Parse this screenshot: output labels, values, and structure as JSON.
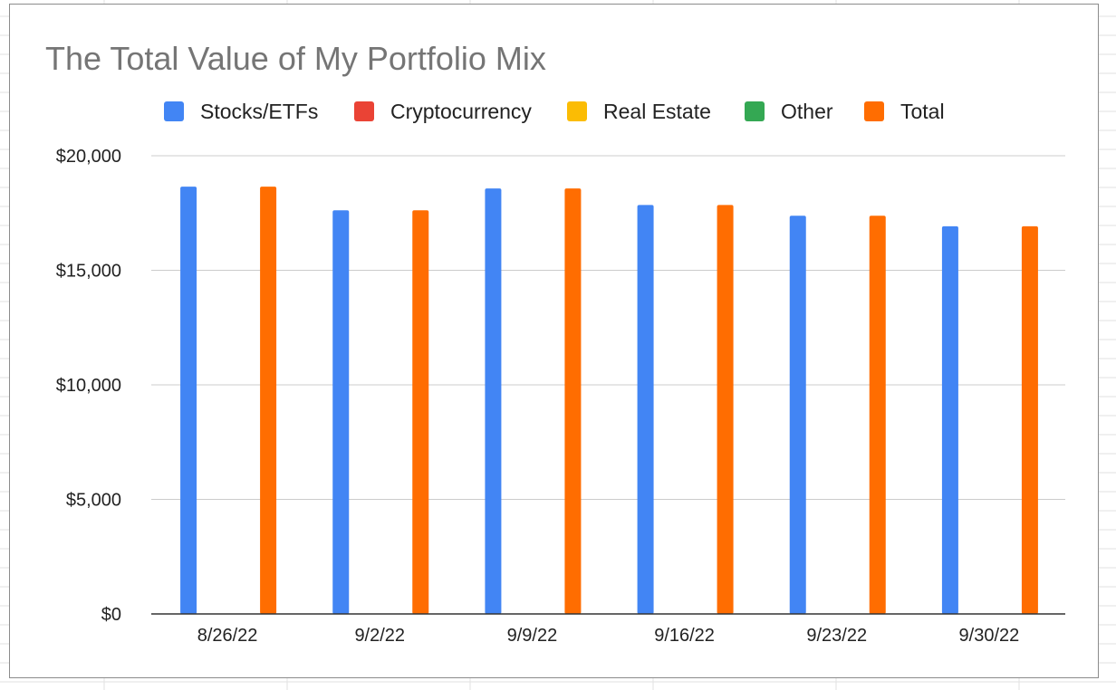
{
  "chart_data": {
    "type": "bar",
    "title": "The Total Value of My Portfolio Mix",
    "xlabel": "",
    "ylabel": "",
    "categories": [
      "8/26/22",
      "9/2/22",
      "9/9/22",
      "9/16/22",
      "9/23/22",
      "9/30/22"
    ],
    "series": [
      {
        "name": "Stocks/ETFs",
        "color": "#4285f4",
        "values": [
          18650,
          17620,
          18570,
          17850,
          17380,
          16920
        ]
      },
      {
        "name": "Cryptocurrency",
        "color": "#ea4335",
        "values": [
          0,
          0,
          0,
          0,
          0,
          0
        ]
      },
      {
        "name": "Real Estate",
        "color": "#fbbc04",
        "values": [
          0,
          0,
          0,
          0,
          0,
          0
        ]
      },
      {
        "name": "Other",
        "color": "#34a853",
        "values": [
          0,
          0,
          0,
          0,
          0,
          0
        ]
      },
      {
        "name": "Total",
        "color": "#ff6d01",
        "values": [
          18650,
          17620,
          18570,
          17850,
          17380,
          16920
        ]
      }
    ],
    "ylim": [
      0,
      20000
    ],
    "y_ticks": [
      "$0",
      "$5,000",
      "$10,000",
      "$15,000",
      "$20,000"
    ],
    "y_tick_values": [
      0,
      5000,
      10000,
      15000,
      20000
    ],
    "grid": true,
    "legend_position": "top"
  }
}
